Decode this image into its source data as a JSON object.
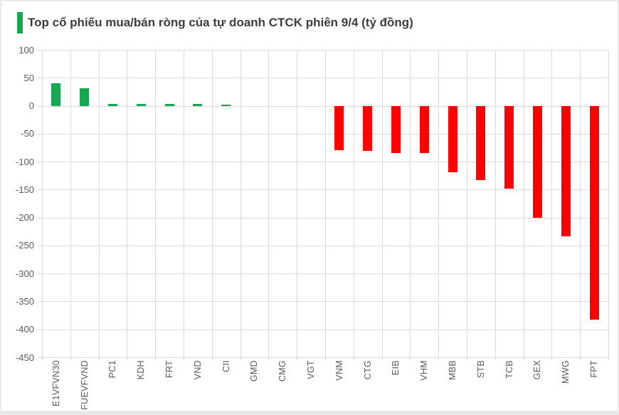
{
  "header": {
    "title": "Top cổ phiếu mua/bán ròng của tự doanh CTCK phiên 9/4 (tỷ đồng)",
    "accent_color": "#17a74f"
  },
  "chart_data": {
    "type": "bar",
    "title": "Top cổ phiếu mua/bán ròng của tự doanh CTCK phiên 9/4 (tỷ đồng)",
    "xlabel": "",
    "ylabel": "tỷ đồng",
    "categories": [
      "E1VFVN30",
      "FUEVFVND",
      "PC1",
      "KDH",
      "FRT",
      "VND",
      "CII",
      "GMD",
      "CMG",
      "VGT",
      "VNM",
      "CTG",
      "EIB",
      "VHM",
      "MBB",
      "STB",
      "TCB",
      "GEX",
      "MWG",
      "FPT"
    ],
    "values": [
      40,
      31,
      3,
      3,
      3,
      3,
      2,
      0,
      0,
      0,
      -79,
      -81,
      -84,
      -84,
      -119,
      -133,
      -148,
      -201,
      -233,
      -383
    ],
    "ylim": [
      -450,
      100
    ],
    "ytick_step": 50,
    "yticks": [
      100,
      50,
      0,
      -50,
      -100,
      -150,
      -200,
      -250,
      -300,
      -350,
      -400,
      -450
    ],
    "grid": true,
    "legend": "none",
    "colors": {
      "positive": "#17a74f",
      "negative": "#fe0000",
      "grid": "#d9d9d9",
      "axis_text": "#595959",
      "title_text": "#3d3d3d"
    }
  }
}
